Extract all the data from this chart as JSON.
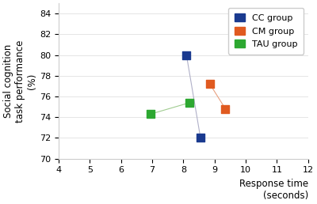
{
  "cc_points": [
    [
      8.1,
      80.0
    ],
    [
      8.55,
      72.0
    ]
  ],
  "cm_points": [
    [
      8.85,
      77.2
    ],
    [
      9.35,
      74.8
    ]
  ],
  "tau_points": [
    [
      6.95,
      74.3
    ],
    [
      8.2,
      75.4
    ]
  ],
  "cc_color": "#1a3a8f",
  "cm_color": "#e05a20",
  "tau_color": "#2da831",
  "line_color_cc": "#b0b0c8",
  "line_color_cm": "#e8a080",
  "line_color_tau": "#a0cc90",
  "xlabel_line1": "Response time",
  "xlabel_line2": "(seconds)",
  "ylabel_line1": "Social cognition",
  "ylabel_line2": "task performance",
  "ylabel_line3": "(%)",
  "xlim": [
    4,
    12
  ],
  "ylim": [
    70,
    85
  ],
  "xticks": [
    4,
    5,
    6,
    7,
    8,
    9,
    10,
    11,
    12
  ],
  "yticks": [
    70,
    72,
    74,
    76,
    78,
    80,
    82,
    84
  ],
  "legend_labels": [
    "CC group",
    "CM group",
    "TAU group"
  ],
  "marker_size": 55
}
